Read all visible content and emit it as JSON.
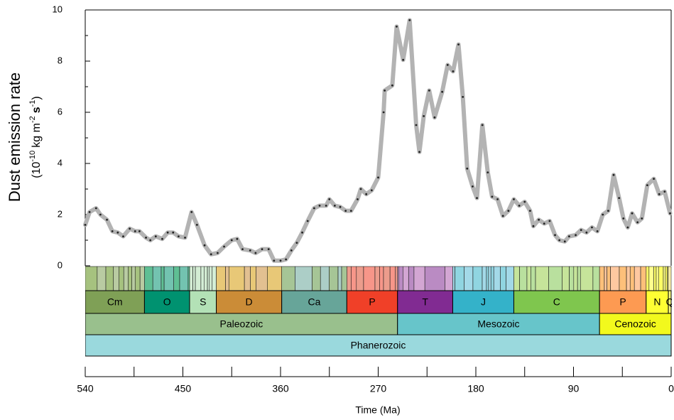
{
  "chart_data": {
    "type": "line",
    "y_label": "Dust emission rate",
    "y_unit_parts": [
      "(10",
      "-10",
      "kg m",
      "-2",
      "s",
      "-1",
      ")"
    ],
    "x_label": "Time (Ma)",
    "x": [
      540,
      536,
      530,
      526,
      520,
      515,
      510,
      505,
      499,
      494,
      490,
      484,
      480,
      475,
      469,
      464,
      459,
      454,
      448,
      442,
      437,
      430,
      424,
      418,
      412,
      405,
      400,
      395,
      388,
      383,
      377,
      371,
      366,
      360,
      355,
      350,
      345,
      340,
      335,
      329,
      324,
      318,
      315,
      310,
      305,
      300,
      295,
      289,
      286,
      281,
      276,
      270,
      265,
      264,
      257,
      253,
      247,
      241,
      235,
      232,
      228,
      223,
      218,
      211,
      206,
      201,
      196,
      192,
      188,
      183,
      179,
      174,
      169,
      165,
      160,
      155,
      150,
      145,
      140,
      135,
      130,
      127,
      122,
      117,
      112,
      107,
      103,
      98,
      94,
      88,
      83,
      78,
      73,
      68,
      63,
      58,
      53,
      48,
      44,
      40,
      36,
      31,
      27,
      22,
      16,
      11,
      6,
      1
    ],
    "values": [
      1.6,
      2.1,
      2.25,
      2.0,
      1.8,
      1.35,
      1.3,
      1.15,
      1.45,
      1.35,
      1.35,
      1.1,
      1.0,
      1.15,
      1.05,
      1.3,
      1.3,
      1.15,
      1.1,
      2.1,
      1.6,
      0.8,
      0.45,
      0.5,
      0.75,
      1.0,
      1.05,
      0.65,
      0.6,
      0.5,
      0.65,
      0.65,
      0.2,
      0.2,
      0.25,
      0.6,
      0.9,
      1.3,
      1.75,
      2.25,
      2.35,
      2.35,
      2.6,
      2.35,
      2.3,
      2.15,
      2.15,
      2.6,
      3.0,
      2.8,
      2.95,
      3.45,
      6.0,
      6.85,
      7.05,
      9.35,
      8.05,
      9.6,
      5.5,
      4.45,
      5.85,
      6.85,
      5.8,
      6.8,
      7.85,
      7.6,
      8.65,
      6.6,
      3.8,
      3.1,
      2.65,
      5.5,
      3.65,
      2.7,
      2.6,
      1.95,
      2.15,
      2.6,
      2.35,
      2.5,
      2.15,
      1.55,
      1.8,
      1.65,
      1.75,
      1.2,
      1.0,
      0.95,
      1.15,
      1.2,
      1.4,
      1.3,
      1.5,
      1.35,
      2.0,
      2.15,
      3.55,
      2.65,
      1.85,
      1.5,
      2.05,
      1.7,
      1.85,
      3.15,
      3.4,
      2.8,
      2.9,
      2.05
    ],
    "color": "#b3b3b3",
    "xlim": [
      540,
      0
    ],
    "xticks": [
      540,
      450,
      360,
      270,
      180,
      90,
      0
    ],
    "x_minor_ticks": [
      495,
      405,
      315,
      225,
      135,
      45
    ],
    "ylim": [
      0,
      10
    ],
    "yticks": [
      0,
      2,
      4,
      6,
      8,
      10
    ],
    "y_minor_ticks": [
      1,
      3,
      5,
      7,
      9
    ],
    "timescale": {
      "periods": [
        {
          "name": "Cm",
          "start": 541,
          "end": 485.4,
          "color": "#7fa056",
          "stage_color": "#a6c27f",
          "stages": [
            529,
            521,
            514,
            509,
            504.5,
            500.5,
            497,
            494,
            489.5
          ]
        },
        {
          "name": "O",
          "start": 485.4,
          "end": 443.8,
          "color": "#009270",
          "stage_color": "#5fbf94",
          "stages": [
            477.7,
            470,
            467.3,
            458.4,
            453,
            445.2
          ]
        },
        {
          "name": "S",
          "start": 443.8,
          "end": 419.2,
          "color": "#b3e1b6",
          "stage_color": "#d3ecd3",
          "stages": [
            440.8,
            438.5,
            433.4,
            430.5,
            427.4,
            425.6,
            423
          ]
        },
        {
          "name": "D",
          "start": 419.2,
          "end": 358.9,
          "color": "#cb8c37",
          "stage_color": "#e8c877",
          "stages": [
            410.8,
            407.6,
            393.3,
            387.7,
            382.7,
            372.2
          ]
        },
        {
          "name": "Ca",
          "start": 358.9,
          "end": 298.9,
          "color": "#67a599",
          "stage_color": "#a6c596",
          "stages": [
            346.7,
            330.9,
            323.2,
            315.2,
            307,
            303.7
          ]
        },
        {
          "name": "P",
          "start": 298.9,
          "end": 252.17,
          "color": "#f04028",
          "stage_color": "#ec9c8c",
          "stages": [
            295,
            290.1,
            283.5,
            272.95,
            268.8,
            265.1,
            259.1,
            254.14
          ]
        },
        {
          "name": "T",
          "start": 252.17,
          "end": 201.3,
          "color": "#812b92",
          "stage_color": "#d3a6d3",
          "stages": [
            251.2,
            247.2,
            242,
            237,
            227,
            208.5
          ]
        },
        {
          "name": "J",
          "start": 201.3,
          "end": 145,
          "color": "#34b2c9",
          "stage_color": "#a3d9e8",
          "stages": [
            199.3,
            190.8,
            182.7,
            174.1,
            170.3,
            168.3,
            166.1,
            163.5,
            157.3,
            152.1
          ]
        },
        {
          "name": "C",
          "start": 145,
          "end": 66,
          "color": "#7fc64e",
          "stage_color": "#c6e49a",
          "stages": [
            139.8,
            132.9,
            129.4,
            125,
            113,
            100.5,
            93.9,
            89.8,
            86.3,
            83.6,
            72.1
          ]
        },
        {
          "name": "P",
          "start": 66,
          "end": 23.03,
          "color": "#fd9a52",
          "stage_color": "#fdc07a",
          "stages": [
            61.6,
            59.2,
            56,
            47.8,
            41.2,
            37.8,
            33.9,
            28.1
          ]
        },
        {
          "name": "N",
          "start": 23.03,
          "end": 2.58,
          "color": "#ffff33",
          "stage_color": "#ffff66",
          "stages": [
            20.44,
            15.97,
            13.82,
            11.63,
            7.246,
            5.333,
            3.6
          ]
        },
        {
          "name": "Q",
          "start": 2.58,
          "end": 0,
          "color": "#f9f97f",
          "stage_color": "#fff2ae",
          "stages": []
        }
      ],
      "eras": [
        {
          "name": "Paleozoic",
          "start": 541,
          "end": 252.17,
          "color": "#99c08d"
        },
        {
          "name": "Mesozoic",
          "start": 252.17,
          "end": 66,
          "color": "#67c5ca"
        },
        {
          "name": "Cenozoic",
          "start": 66,
          "end": 0,
          "color": "#f2f91d"
        }
      ],
      "eons": [
        {
          "name": "Phanerozoic",
          "start": 541,
          "end": 0,
          "color": "#9ad9dd"
        }
      ]
    }
  }
}
